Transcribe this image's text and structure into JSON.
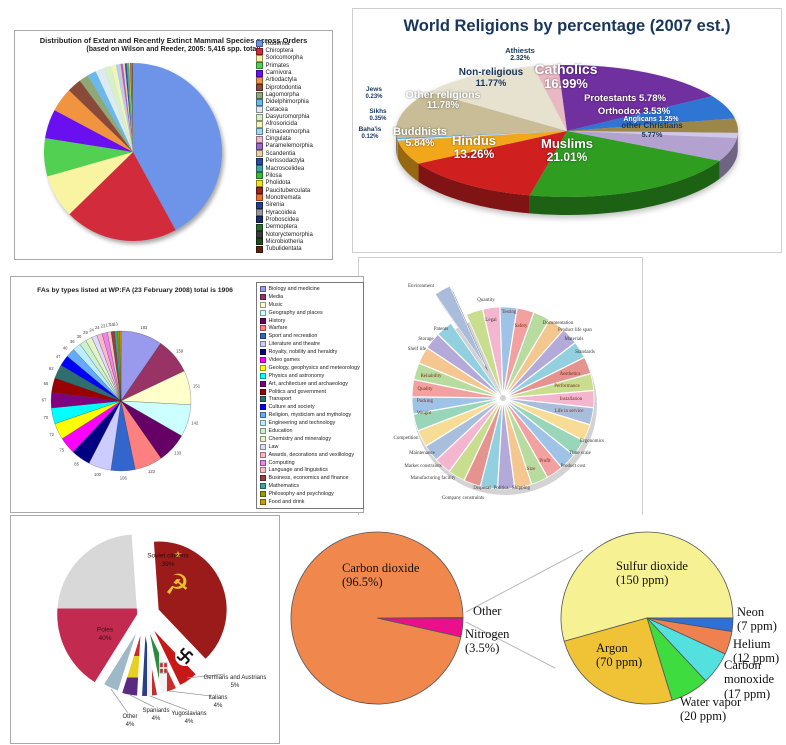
{
  "chart_data": [
    {
      "id": "mammal-species",
      "type": "pie",
      "title": "Distribution of Extant and Recently Extinct Mammal Species across Orders",
      "subtitle": "(based on Wilson and Reeder, 2005: 5,416 spp. total)",
      "legend_position": "right",
      "categories": [
        "Rodentia",
        "Chiroptera",
        "Soricomorpha",
        "Primates",
        "Carnivora",
        "Artiodactyla",
        "Diprotodontia",
        "Lagomorpha",
        "Didelphimorphia",
        "Cetacea",
        "Dasyuromorphia",
        "Afrosoricida",
        "Erinaceomorpha",
        "Cingulata",
        "Paramelemorphia",
        "Scandentia",
        "Perissodactyla",
        "Macroscelidea",
        "Pilosa",
        "Pholidota",
        "Paucituberculata",
        "Monotremata",
        "Sirenia",
        "Hyracoidea",
        "Proboscidea",
        "Dermoptera",
        "Notoryctemorphia",
        "Microbiotheria",
        "Tubulidentata"
      ],
      "values_percent": [
        42.0,
        20.6,
        7.9,
        6.9,
        5.3,
        4.4,
        2.6,
        1.7,
        1.6,
        1.6,
        1.3,
        0.9,
        0.45,
        0.4,
        0.4,
        0.37,
        0.31,
        0.28,
        0.18,
        0.15,
        0.11,
        0.09,
        0.09,
        0.07,
        0.06,
        0.04,
        0.04,
        0.02,
        0.02
      ],
      "colors": [
        "#6d94e8",
        "#d22c3c",
        "#f8f4a2",
        "#52d052",
        "#6a10f0",
        "#f09440",
        "#8a4a3a",
        "#8fa878",
        "#6ab8ec",
        "#dceaf4",
        "#d8f0c8",
        "#f4f4b8",
        "#a0d8f4",
        "#f4b8d0",
        "#9a68c8",
        "#ecd0a0",
        "#2a48a8",
        "#42a8a8",
        "#3cb83c",
        "#f0e030",
        "#9a2424",
        "#f07030",
        "#283c90",
        "#9a9a9a",
        "#1c2c6c",
        "#2a6a2a",
        "#3a3a3a",
        "#1c4c1c",
        "#5c2410"
      ]
    },
    {
      "id": "world-religions",
      "type": "pie-3d",
      "title": "World Religions by percentage (2007 est.)",
      "slices": [
        {
          "label": "Catholics",
          "pct": "16.99%",
          "value": 16.99,
          "color": "#7030a0"
        },
        {
          "label": "Protestants",
          "pct": "5.78%",
          "value": 5.78,
          "color": "#2e75d4"
        },
        {
          "label": "Orthodox",
          "pct": "3.53%",
          "value": 3.53,
          "color": "#9c8648"
        },
        {
          "label": "Anglicans",
          "pct": "1.25%",
          "value": 1.25,
          "color": "#cfc8ea"
        },
        {
          "label": "other Christians",
          "pct": "5.77%",
          "value": 5.77,
          "color": "#b3a2d0"
        },
        {
          "label": "Muslims",
          "pct": "21.01%",
          "value": 21.01,
          "color": "#2f9e20"
        },
        {
          "label": "Hindus",
          "pct": "13.26%",
          "value": 13.26,
          "color": "#cf1f1f"
        },
        {
          "label": "Buddhists",
          "pct": "5.84%",
          "value": 5.84,
          "color": "#f2a71b"
        },
        {
          "label": "Baha'is",
          "pct": "0.12%",
          "value": 0.12,
          "color": "#8ed0e8"
        },
        {
          "label": "Sikhs",
          "pct": "0.35%",
          "value": 0.35,
          "color": "#e8e2f2"
        },
        {
          "label": "Jews",
          "pct": "0.23%",
          "value": 0.23,
          "color": "#4aa8d8"
        },
        {
          "label": "Other religions",
          "pct": "11.78%",
          "value": 11.78,
          "color": "#c9bd97"
        },
        {
          "label": "Non-religious",
          "pct": "11.77%",
          "value": 11.77,
          "color": "#e7e2d0"
        },
        {
          "label": "Athiests",
          "pct": "2.32%",
          "value": 2.32,
          "color": "#eab8c2"
        }
      ]
    },
    {
      "id": "featured-articles",
      "type": "pie",
      "title": "FAs by types listed at WP:FA (23 February 2008) total is 1906",
      "total": 1906,
      "legend_position": "right",
      "categories": [
        "Biology and medicine",
        "Media",
        "Music",
        "Geography and places",
        "History",
        "Warfare",
        "Sport and recreation",
        "Literature and theatre",
        "Royalty, nobility and heraldry",
        "Video games",
        "Geology, geophysics and meteorology",
        "Physics and astronomy",
        "Art, architecture and archaeology",
        "Politics and government",
        "Transport",
        "Culture and society",
        "Religion, mysticism and mythology",
        "Engineering and technology",
        "Education",
        "Chemistry and mineralogy",
        "Law",
        "Awards, decorations and vexillology",
        "Computing",
        "Language and linguistics",
        "Business, economics and finance",
        "Mathematics",
        "Philosophy and psychology",
        "Food and drink"
      ],
      "values": [
        183,
        159,
        151,
        142,
        133,
        123,
        106,
        100,
        85,
        75,
        72,
        70,
        67,
        65,
        62,
        47,
        40,
        36,
        30,
        29,
        24,
        24,
        23,
        17,
        15,
        13,
        9,
        6
      ],
      "colors": [
        "#9999ee",
        "#993366",
        "#ffffcc",
        "#ccffff",
        "#660066",
        "#ff8080",
        "#3366cc",
        "#ccccff",
        "#000080",
        "#ff00ff",
        "#ffff00",
        "#00ffff",
        "#800080",
        "#990000",
        "#2e6e6e",
        "#0000ff",
        "#66aaff",
        "#bbeeff",
        "#ccf2cc",
        "#e2f4c8",
        "#dcdcff",
        "#ffb6c8",
        "#ee82ee",
        "#f4c2c2",
        "#993c3c",
        "#35a89a",
        "#999900",
        "#cc9900"
      ]
    },
    {
      "id": "design-constraints",
      "type": "pie-exploded",
      "exploded_slice": "Environment",
      "categories": [
        "Testing",
        "Safety",
        "Documentation",
        "Product life span",
        "Materials",
        "Standards",
        "Aesthetics",
        "Performance",
        "Installation",
        "Life in service",
        "Ergonomics",
        "Time scale",
        "Product cost",
        "Profit",
        "Size",
        "Shipping",
        "Politics",
        "Disposal",
        "Company constraints",
        "Manufacturing facility",
        "Market constraints",
        "Maintenance",
        "Competition",
        "Weight",
        "Packing",
        "Quality",
        "Reliability",
        "Shelf life",
        "Storage",
        "Patents",
        "Environment",
        "Quantity",
        "Legal"
      ],
      "values": [
        1,
        1,
        1,
        1,
        1,
        1,
        1,
        1,
        1,
        1,
        1,
        1,
        1,
        1,
        1,
        1,
        1,
        1,
        1,
        1,
        1,
        1,
        1,
        1,
        1,
        1,
        1,
        1,
        1,
        1,
        1,
        1,
        1
      ]
    },
    {
      "id": "wwii-victims-by-nationality",
      "type": "pie-exploded-flags",
      "slices": [
        {
          "label": "Soviet citizens",
          "pct": "39%",
          "value": 39,
          "flag": "soviet-union"
        },
        {
          "label": "Germans and Austrians",
          "pct": "5%",
          "value": 5,
          "flag": "nazi-germany"
        },
        {
          "label": "Italians",
          "pct": "4%",
          "value": 4,
          "flag": "italy"
        },
        {
          "label": "Yugoslavians",
          "pct": "4%",
          "value": 4,
          "flag": "yugoslavia"
        },
        {
          "label": "Spaniards",
          "pct": "4%",
          "value": 4,
          "flag": "spanish-republic"
        },
        {
          "label": "Other",
          "pct": "4%",
          "value": 4,
          "flag": "other"
        },
        {
          "label": "Poles",
          "pct": "40%",
          "value": 40,
          "flag": "poland"
        }
      ]
    },
    {
      "id": "venus-atmosphere-composition",
      "type": "pie",
      "slices": [
        {
          "label": "Other",
          "sub": "",
          "value": 0.15,
          "color": "#4b4b1a"
        },
        {
          "label": "Nitrogen",
          "sub": "(3.5%)",
          "value": 3.5,
          "color": "#eb0f8c"
        },
        {
          "label": "Carbon dioxide",
          "sub": "(96.5%)",
          "value": 96.5,
          "color": "#f0874d"
        }
      ]
    },
    {
      "id": "venus-trace-gases",
      "type": "pie",
      "slices": [
        {
          "label": "Sulfur dioxide",
          "sub": "(150 ppm)",
          "value": 150,
          "color": "#f6f294"
        },
        {
          "label": "Neon",
          "sub": "(7 ppm)",
          "value": 7,
          "color": "#2e6fd8"
        },
        {
          "label": "Helium",
          "sub": "(12 ppm)",
          "value": 12,
          "color": "#ef8150"
        },
        {
          "label": "Carbon monoxide",
          "sub": "(17 ppm)",
          "value": 17,
          "color": "#55e0e0"
        },
        {
          "label": "Water vapor",
          "sub": "(20 ppm)",
          "value": 20,
          "color": "#3edc3e"
        },
        {
          "label": "Argon",
          "sub": "(70 ppm)",
          "value": 70,
          "color": "#efc335"
        }
      ]
    }
  ]
}
